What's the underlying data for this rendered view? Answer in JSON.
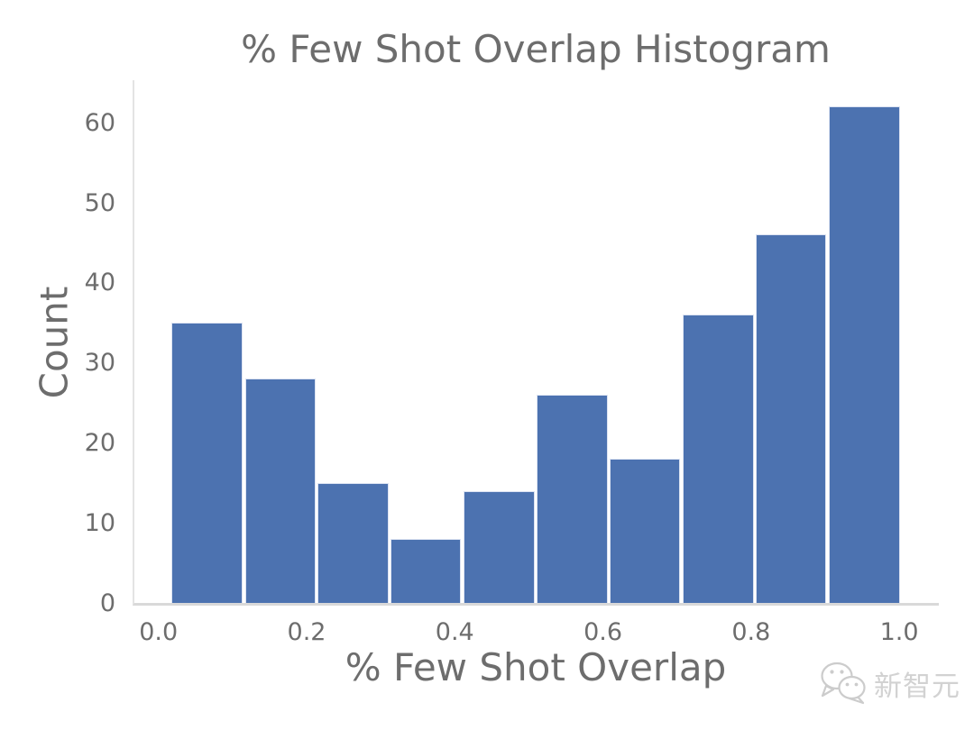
{
  "chart_data": {
    "type": "bar",
    "subtype": "histogram",
    "title": "% Few Shot Overlap Histogram",
    "xlabel": "% Few Shot Overlap",
    "ylabel": "Count",
    "bin_edges": [
      0.014,
      0.113,
      0.211,
      0.31,
      0.408,
      0.507,
      0.606,
      0.704,
      0.803,
      0.901,
      1.0
    ],
    "values": [
      35,
      28,
      15,
      8,
      14,
      26,
      18,
      36,
      46,
      62
    ],
    "x_ticks": [
      "0.0",
      "0.2",
      "0.4",
      "0.6",
      "0.8",
      "1.0"
    ],
    "x_tick_values": [
      0.0,
      0.2,
      0.4,
      0.6,
      0.8,
      1.0
    ],
    "y_ticks": [
      0,
      10,
      20,
      30,
      40,
      50,
      60
    ],
    "xlim": [
      -0.035,
      1.051
    ],
    "ylim": [
      0,
      65.25
    ],
    "grid": false,
    "legend": null,
    "colors": {
      "bar": "#4c72b0",
      "bar_edge": "#dce3f2",
      "text": "#6d6d6d",
      "spine_left": "#e4e4e4",
      "spine_bottom": "#d9d9d9"
    }
  },
  "watermark": {
    "text": "新智元",
    "icon": "wechat-icon",
    "color": "#d2d2d2"
  }
}
